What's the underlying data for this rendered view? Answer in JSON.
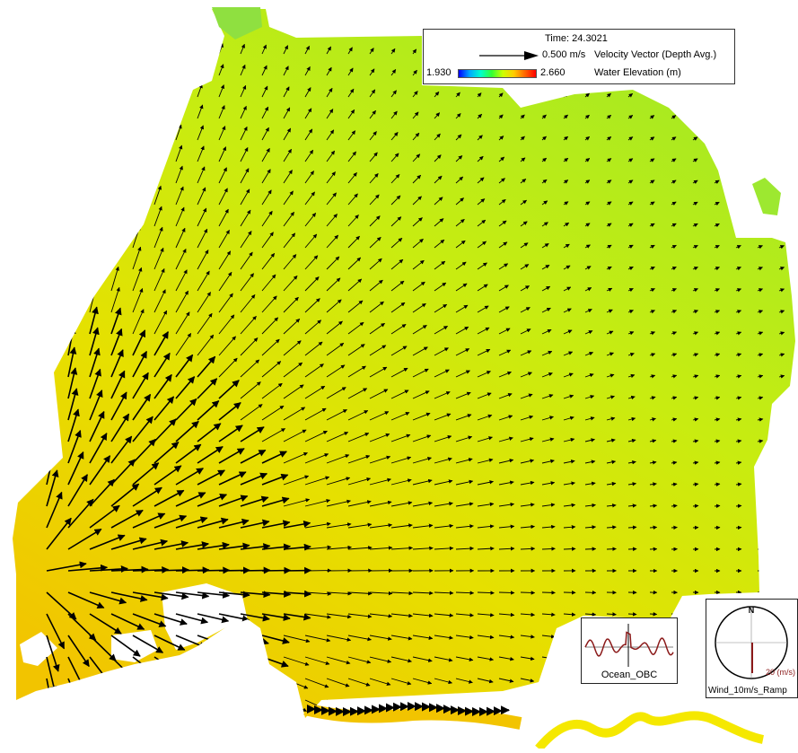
{
  "legend": {
    "time_label": "Time: 24.3021",
    "vector_scale": "0.500 m/s",
    "vector_title": "Velocity Vector (Depth Avg.)",
    "elev_min": "1.930",
    "elev_max": "2.660",
    "elev_title": "Water Elevation (m)"
  },
  "ocean_plot": {
    "label": "Ocean_OBC",
    "color": "#8b1a1a"
  },
  "wind_plot": {
    "label": "Wind_10m/s_Ramp",
    "north": "N",
    "speed_label": "20 (m/s)",
    "color": "#8b1a1a"
  },
  "colors": {
    "water_low": "#b8ee10",
    "water_high": "#f0c000",
    "arrow": "#000000",
    "land": "#ffffff"
  }
}
